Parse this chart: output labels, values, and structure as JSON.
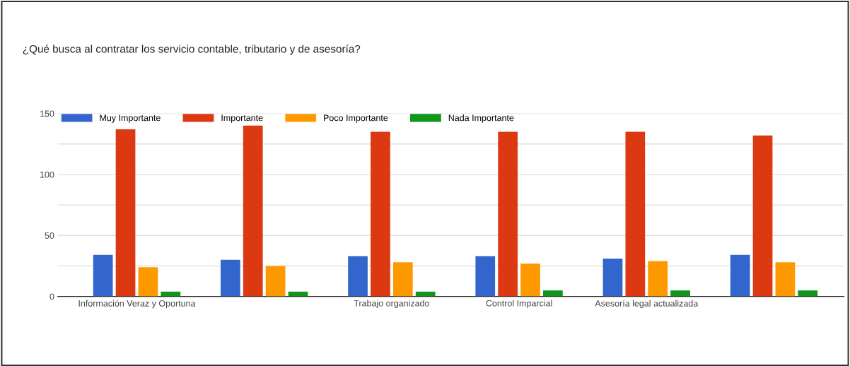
{
  "chart_data": {
    "type": "bar",
    "title": "¿Qué busca al contratar los servicio contable, tributario y de asesoría?",
    "categories": [
      "Información Veraz y Oportuna",
      null,
      "Trabajo organizado",
      "Control Imparcial",
      "Asesoría legal actualizada",
      null
    ],
    "series": [
      {
        "name": "Muy Importante",
        "color": "#3366cc",
        "values": [
          34,
          30,
          33,
          33,
          31,
          34
        ]
      },
      {
        "name": "Importante",
        "color": "#dc3912",
        "values": [
          137,
          140,
          135,
          135,
          135,
          132
        ]
      },
      {
        "name": "Poco Importante",
        "color": "#ff9900",
        "values": [
          24,
          25,
          28,
          27,
          29,
          28
        ]
      },
      {
        "name": "Nada Importante",
        "color": "#109618",
        "values": [
          4,
          4,
          4,
          5,
          5,
          5
        ]
      }
    ],
    "ylim": [
      0,
      150
    ],
    "yticks": [
      0,
      {
        "value": 25,
        "label": null
      },
      50,
      {
        "value": 75,
        "label": null
      },
      100,
      {
        "value": 125,
        "label": null
      },
      150
    ],
    "grid": "y",
    "legend": "top left"
  }
}
